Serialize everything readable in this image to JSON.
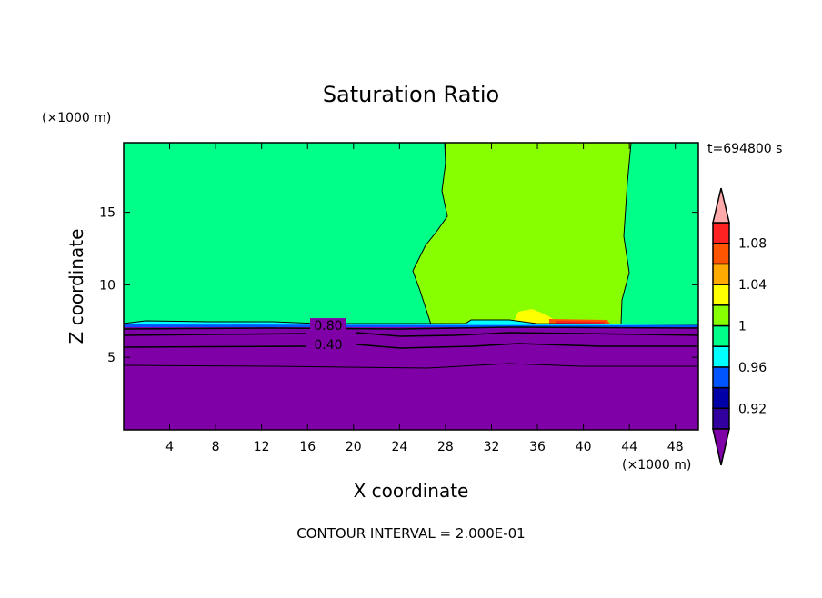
{
  "chart_data": {
    "type": "heatmap",
    "title": "Saturation Ratio",
    "xlabel": "X coordinate",
    "ylabel": "Z coordinate",
    "x_unit": "(×1000 m)",
    "y_unit": "(×1000 m)",
    "xlim": [
      0,
      50
    ],
    "ylim": [
      0,
      19.8
    ],
    "xticks": [
      4,
      8,
      12,
      16,
      20,
      24,
      28,
      32,
      36,
      40,
      44,
      48
    ],
    "yticks": [
      5,
      10,
      15
    ],
    "time_label": "t=694800 s",
    "footer": "CONTOUR INTERVAL = 2.000E-01",
    "contour_labels": [
      {
        "text": "0.80",
        "x": 17.8,
        "z": 7.2
      },
      {
        "text": "0.40",
        "x": 17.8,
        "z": 5.9
      }
    ],
    "colorbar": {
      "levels": [
        0.9,
        0.92,
        0.94,
        0.96,
        0.98,
        1.0,
        1.02,
        1.04,
        1.06,
        1.08,
        1.1
      ],
      "tick_labels": [
        {
          "v": 0.92,
          "text": "0.92"
        },
        {
          "v": 0.96,
          "text": "0.96"
        },
        {
          "v": 1.0,
          "text": "1"
        },
        {
          "v": 1.04,
          "text": "1.04"
        },
        {
          "v": 1.08,
          "text": "1.08"
        }
      ],
      "colors": [
        "#3300a0",
        "#0000a8",
        "#0055ff",
        "#00ffff",
        "#00ff88",
        "#88ff00",
        "#ffff00",
        "#ffaa00",
        "#ff5500",
        "#ff2222"
      ],
      "under_color": "#7f00a6",
      "over_color": "#ffaaaa"
    }
  }
}
